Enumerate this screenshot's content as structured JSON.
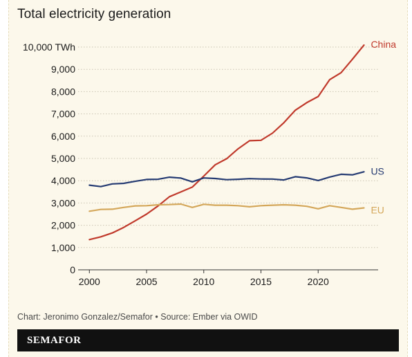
{
  "header": {
    "title": "Total electricity generation"
  },
  "footer": {
    "source": "Chart: Jeronimo Gonzalez/Semafor • Source: Ember via OWID",
    "brand": "SEMAFOR"
  },
  "colors": {
    "background": "#fcf8eb",
    "china": "#c0392b",
    "us": "#243a72",
    "eu": "#d4a75a",
    "grid": "#c9c3b2",
    "axis": "#333333"
  },
  "chart_data": {
    "type": "line",
    "title": "Total electricity generation",
    "xlabel": "",
    "ylabel": "",
    "xlim": [
      1999.5,
      2025
    ],
    "ylim": [
      0,
      10000
    ],
    "x_ticks": [
      2000,
      2005,
      2010,
      2015,
      2020
    ],
    "y_ticks": [
      0,
      1000,
      2000,
      3000,
      4000,
      5000,
      6000,
      7000,
      8000,
      9000,
      10000
    ],
    "y_tick_labels": [
      "0",
      "1,000",
      "2,000",
      "3,000",
      "4,000",
      "5,000",
      "6,000",
      "7,000",
      "8,000",
      "9,000",
      "10,000 TWh"
    ],
    "grid": "horizontal dotted",
    "legend": "direct labels at line ends",
    "x": [
      2000,
      2001,
      2002,
      2003,
      2004,
      2005,
      2006,
      2007,
      2008,
      2009,
      2010,
      2011,
      2012,
      2013,
      2014,
      2015,
      2016,
      2017,
      2018,
      2019,
      2020,
      2021,
      2022,
      2023,
      2024
    ],
    "series": [
      {
        "name": "China",
        "color": "#c0392b",
        "values": [
          1356,
          1480,
          1654,
          1905,
          2200,
          2500,
          2866,
          3282,
          3496,
          3714,
          4207,
          4713,
          4987,
          5432,
          5795,
          5814,
          6133,
          6604,
          7166,
          7503,
          7779,
          8534,
          8849,
          9456,
          10087
        ]
      },
      {
        "name": "US",
        "color": "#243a72",
        "values": [
          3802,
          3737,
          3858,
          3883,
          3971,
          4055,
          4065,
          4157,
          4119,
          3950,
          4125,
          4100,
          4047,
          4066,
          4094,
          4077,
          4076,
          4034,
          4181,
          4128,
          4010,
          4165,
          4290,
          4264,
          4400
        ]
      },
      {
        "name": "EU",
        "color": "#d4a75a",
        "values": [
          2630,
          2710,
          2720,
          2800,
          2870,
          2880,
          2920,
          2930,
          2950,
          2800,
          2940,
          2900,
          2900,
          2880,
          2830,
          2880,
          2900,
          2920,
          2900,
          2850,
          2740,
          2880,
          2800,
          2720,
          2780
        ]
      }
    ]
  }
}
